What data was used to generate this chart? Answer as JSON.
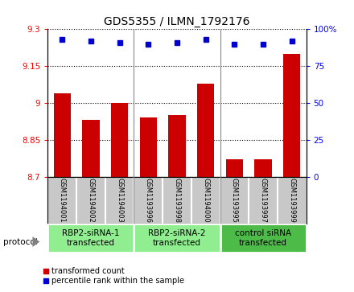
{
  "title": "GDS5355 / ILMN_1792176",
  "samples": [
    "GSM1194001",
    "GSM1194002",
    "GSM1194003",
    "GSM1193996",
    "GSM1193998",
    "GSM1194000",
    "GSM1193995",
    "GSM1193997",
    "GSM1193999"
  ],
  "transformed_counts": [
    9.04,
    8.93,
    9.0,
    8.94,
    8.95,
    9.08,
    8.77,
    8.77,
    9.2
  ],
  "percentile_ranks": [
    93,
    92,
    91,
    90,
    91,
    93,
    90,
    90,
    92
  ],
  "ylim_left": [
    8.7,
    9.3
  ],
  "ylim_right": [
    0,
    100
  ],
  "yticks_left": [
    8.7,
    8.85,
    9.0,
    9.15,
    9.3
  ],
  "yticks_right": [
    0,
    25,
    50,
    75,
    100
  ],
  "ytick_labels_left": [
    "8.7",
    "8.85",
    "9",
    "9.15",
    "9.3"
  ],
  "ytick_labels_right": [
    "0",
    "25",
    "50",
    "75",
    "100%"
  ],
  "groups": [
    {
      "label": "RBP2-siRNA-1\ntransfected",
      "indices": [
        0,
        1,
        2
      ],
      "color": "#90EE90"
    },
    {
      "label": "RBP2-siRNA-2\ntransfected",
      "indices": [
        3,
        4,
        5
      ],
      "color": "#90EE90"
    },
    {
      "label": "control siRNA\ntransfected",
      "indices": [
        6,
        7,
        8
      ],
      "color": "#4CBB47"
    }
  ],
  "bar_color": "#CC0000",
  "dot_color": "#0000CC",
  "bar_width": 0.6,
  "sample_box_color": "#C8C8C8",
  "legend_items": [
    {
      "color": "#CC0000",
      "label": "transformed count"
    },
    {
      "color": "#0000CC",
      "label": "percentile rank within the sample"
    }
  ]
}
